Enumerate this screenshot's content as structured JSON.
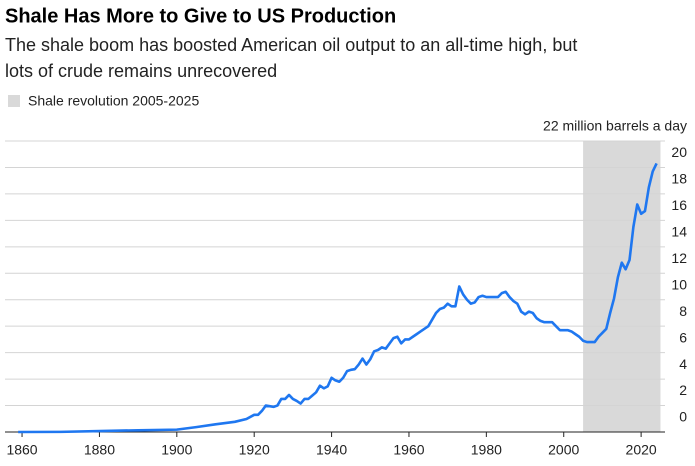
{
  "chart_data": {
    "type": "line",
    "title": "Shale Has More to Give to US Production",
    "subtitle": [
      "The shale boom has boosted American oil output to an all-time high, but",
      "lots of crude remains unrecovered"
    ],
    "shaded_region": {
      "label": "Shale revolution 2005-2025",
      "x": [
        2005,
        2025
      ],
      "color": "#d9d9d9"
    },
    "color": "#1f77f0",
    "x": [
      1859,
      1870,
      1880,
      1890,
      1900,
      1905,
      1910,
      1915,
      1918,
      1920,
      1921,
      1922,
      1923,
      1924,
      1925,
      1926,
      1927,
      1928,
      1929,
      1930,
      1931,
      1932,
      1933,
      1934,
      1935,
      1936,
      1937,
      1938,
      1939,
      1940,
      1941,
      1942,
      1943,
      1944,
      1945,
      1946,
      1947,
      1948,
      1949,
      1950,
      1951,
      1952,
      1953,
      1954,
      1955,
      1956,
      1957,
      1958,
      1959,
      1960,
      1961,
      1962,
      1963,
      1964,
      1965,
      1966,
      1967,
      1968,
      1969,
      1970,
      1971,
      1972,
      1973,
      1974,
      1975,
      1976,
      1977,
      1978,
      1979,
      1980,
      1981,
      1982,
      1983,
      1984,
      1985,
      1986,
      1987,
      1988,
      1989,
      1990,
      1991,
      1992,
      1993,
      1994,
      1995,
      1996,
      1997,
      1998,
      1999,
      2000,
      2001,
      2002,
      2003,
      2004,
      2005,
      2006,
      2007,
      2008,
      2009,
      2010,
      2011,
      2012,
      2013,
      2014,
      2015,
      2016,
      2017,
      2018,
      2019,
      2020,
      2021,
      2022,
      2023,
      2024
    ],
    "values": [
      0,
      0.01,
      0.07,
      0.13,
      0.18,
      0.37,
      0.58,
      0.77,
      0.98,
      1.3,
      1.3,
      1.6,
      2.0,
      1.95,
      1.9,
      2.0,
      2.5,
      2.5,
      2.8,
      2.5,
      2.35,
      2.15,
      2.5,
      2.5,
      2.75,
      3.0,
      3.5,
      3.3,
      3.45,
      4.1,
      3.9,
      3.8,
      4.1,
      4.6,
      4.7,
      4.75,
      5.1,
      5.55,
      5.1,
      5.5,
      6.1,
      6.2,
      6.4,
      6.3,
      6.7,
      7.1,
      7.2,
      6.7,
      7.0,
      7.0,
      7.2,
      7.4,
      7.6,
      7.8,
      8.0,
      8.5,
      9.0,
      9.3,
      9.4,
      9.7,
      9.5,
      9.5,
      11.0,
      10.4,
      10.0,
      9.7,
      9.8,
      10.2,
      10.3,
      10.2,
      10.2,
      10.2,
      10.2,
      10.5,
      10.6,
      10.2,
      9.9,
      9.7,
      9.1,
      8.9,
      9.1,
      9.0,
      8.6,
      8.4,
      8.3,
      8.3,
      8.3,
      8.0,
      7.7,
      7.7,
      7.7,
      7.6,
      7.4,
      7.2,
      6.9,
      6.8,
      6.8,
      6.8,
      7.2,
      7.5,
      7.8,
      9.0,
      10.1,
      11.7,
      12.8,
      12.3,
      13.0,
      15.5,
      17.2,
      16.5,
      16.7,
      18.5,
      19.7,
      20.3
    ],
    "xlim": [
      1855,
      2027
    ],
    "xticks": [
      1860,
      1880,
      1900,
      1920,
      1940,
      1960,
      1980,
      2000,
      2020
    ],
    "ylim": [
      0,
      22
    ],
    "yticks": [
      0,
      2,
      4,
      6,
      8,
      10,
      12,
      14,
      16,
      18,
      20,
      {
        "value": 22,
        "label": "22 million barrels a day"
      }
    ],
    "grid": true
  }
}
